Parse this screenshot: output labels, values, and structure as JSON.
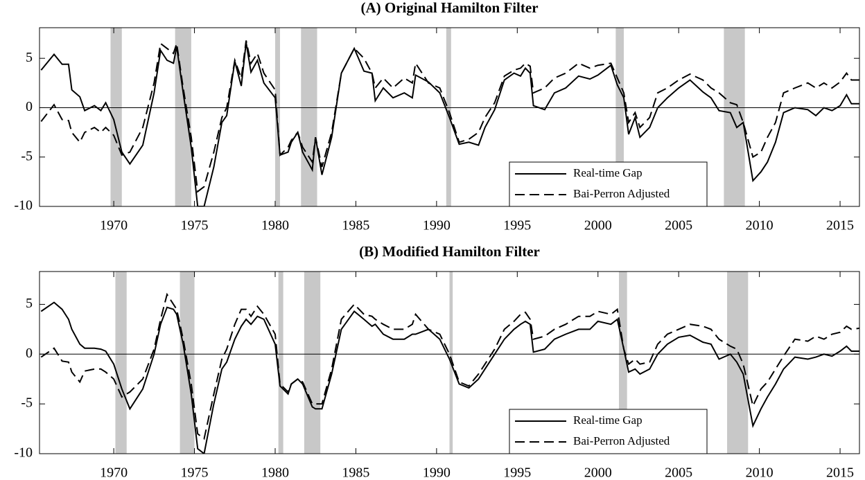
{
  "chart_data": [
    {
      "type": "line",
      "title": "(A) Original Hamilton Filter",
      "x": [
        1965.5,
        1966.3,
        1966.8,
        1967.2,
        1967.4,
        1967.9,
        1968.2,
        1968.8,
        1969.2,
        1969.5,
        1970.0,
        1970.5,
        1971.0,
        1971.8,
        1972.5,
        1972.9,
        1973.3,
        1973.7,
        1973.9,
        1974.3,
        1974.8,
        1975.2,
        1975.6,
        1976.2,
        1976.7,
        1977.0,
        1977.5,
        1977.9,
        1978.2,
        1978.5,
        1978.9,
        1979.3,
        1980.0,
        1980.3,
        1980.8,
        1981.0,
        1981.4,
        1981.7,
        1982.3,
        1982.5,
        1982.9,
        1983.5,
        1984.1,
        1984.9,
        1985.5,
        1986.0,
        1986.2,
        1986.7,
        1987.3,
        1988.0,
        1988.5,
        1988.7,
        1989.5,
        1990.2,
        1990.8,
        1991.4,
        1992.0,
        1992.6,
        1993.0,
        1993.6,
        1994.2,
        1994.8,
        1995.2,
        1995.5,
        1995.8,
        1996.0,
        1996.7,
        1997.3,
        1998.0,
        1998.8,
        1999.5,
        2000.0,
        2000.8,
        2001.2,
        2001.6,
        2001.9,
        2002.3,
        2002.6,
        2003.2,
        2003.7,
        2004.3,
        2005.0,
        2005.7,
        2006.5,
        2007.0,
        2007.5,
        2008.2,
        2008.6,
        2009.0,
        2009.6,
        2010.1,
        2010.5,
        2011.0,
        2011.5,
        2012.2,
        2013.0,
        2013.5,
        2014.0,
        2014.5,
        2015.0,
        2015.4,
        2015.7,
        2016.2
      ],
      "series": [
        {
          "name": "Real-time Gap",
          "color": "#000000",
          "line_style": "solid",
          "values": [
            3.8,
            5.4,
            4.4,
            4.4,
            1.8,
            1.1,
            -0.3,
            0.2,
            -0.3,
            0.5,
            -1.2,
            -4.5,
            -5.7,
            -3.8,
            1.5,
            5.8,
            4.8,
            4.5,
            6.2,
            1.5,
            -4.0,
            -10,
            -10,
            -6.0,
            -1.5,
            -0.8,
            4.7,
            2.2,
            6.6,
            3.6,
            4.8,
            2.5,
            1.0,
            -4.8,
            -4.5,
            -3.5,
            -2.5,
            -4.5,
            -6.3,
            -3.0,
            -6.8,
            -3.0,
            3.5,
            6.0,
            3.7,
            3.5,
            0.7,
            2.0,
            1.0,
            1.5,
            1.0,
            3.3,
            2.6,
            1.5,
            -1.0,
            -3.7,
            -3.5,
            -3.8,
            -2.0,
            -0.2,
            2.8,
            3.5,
            3.2,
            4.0,
            3.5,
            0.2,
            -0.2,
            1.5,
            2.0,
            3.2,
            2.9,
            3.3,
            4.3,
            2.3,
            1.0,
            -2.7,
            -1.0,
            -3.0,
            -2.0,
            0.0,
            1.0,
            2.0,
            2.8,
            1.6,
            1.0,
            -0.3,
            -0.5,
            -2.0,
            -1.5,
            -7.4,
            -6.5,
            -5.5,
            -3.5,
            -0.5,
            0.0,
            -0.2,
            -0.8,
            0.0,
            -0.3,
            0.2,
            1.3,
            0.4,
            0.4
          ]
        },
        {
          "name": "Bai-Perron Adjusted",
          "color": "#000000",
          "line_style": "dashed",
          "values": [
            -1.4,
            0.3,
            -1.2,
            -1.3,
            -2.5,
            -3.5,
            -2.5,
            -2.0,
            -2.5,
            -2.0,
            -2.8,
            -4.8,
            -4.5,
            -2.0,
            2.5,
            6.5,
            6.0,
            5.5,
            6.5,
            2.0,
            -3.0,
            -8.5,
            -8.0,
            -4.5,
            -1.0,
            0.0,
            4.8,
            3.0,
            6.8,
            4.5,
            5.5,
            3.5,
            1.8,
            -4.8,
            -4.0,
            -3.3,
            -2.5,
            -4.0,
            -5.5,
            -3.0,
            -6.0,
            -2.5,
            3.5,
            6.0,
            5.0,
            3.5,
            2.0,
            3.0,
            2.0,
            3.0,
            2.5,
            4.5,
            2.5,
            2.0,
            -0.5,
            -3.5,
            -3.2,
            -2.5,
            -1.0,
            0.5,
            3.2,
            3.8,
            4.0,
            4.5,
            4.2,
            1.5,
            2.0,
            3.0,
            3.5,
            4.5,
            4.0,
            4.3,
            4.5,
            3.0,
            1.5,
            -1.5,
            -0.5,
            -2.0,
            -1.0,
            1.5,
            2.0,
            2.8,
            3.4,
            2.8,
            2.0,
            1.5,
            0.5,
            0.3,
            -1.5,
            -5.0,
            -4.5,
            -3.0,
            -1.5,
            1.5,
            2.0,
            2.5,
            2.0,
            2.5,
            2.0,
            2.6,
            3.5,
            2.8,
            2.8
          ]
        }
      ],
      "xlim": [
        1965.4,
        2016.2
      ],
      "ylim": [
        -10,
        8.1
      ],
      "xticks": [
        1970,
        1975,
        1980,
        1985,
        1990,
        1995,
        2000,
        2005,
        2010,
        2015
      ],
      "yticks": [
        -10,
        -5,
        0,
        5
      ],
      "shaded_regions": [
        [
          1969.8,
          1970.5
        ],
        [
          1973.8,
          1974.8
        ],
        [
          1980.0,
          1980.3
        ],
        [
          1981.6,
          1982.6
        ],
        [
          1990.6,
          1990.9
        ],
        [
          2001.1,
          2001.6
        ],
        [
          2007.8,
          2009.1
        ]
      ],
      "legend": "lower right"
    },
    {
      "type": "line",
      "title": "(B) Modified Hamilton Filter",
      "x": [
        1965.5,
        1966.3,
        1966.8,
        1967.2,
        1967.4,
        1967.9,
        1968.2,
        1968.8,
        1969.2,
        1969.5,
        1970.0,
        1970.5,
        1971.0,
        1971.8,
        1972.5,
        1972.9,
        1973.3,
        1973.7,
        1973.9,
        1974.3,
        1974.8,
        1975.2,
        1975.6,
        1976.2,
        1976.7,
        1977.0,
        1977.5,
        1977.9,
        1978.2,
        1978.5,
        1978.9,
        1979.3,
        1980.0,
        1980.3,
        1980.8,
        1981.0,
        1981.4,
        1981.7,
        1982.3,
        1982.5,
        1982.9,
        1983.5,
        1984.1,
        1984.9,
        1985.5,
        1986.0,
        1986.2,
        1986.7,
        1987.3,
        1988.0,
        1988.5,
        1988.7,
        1989.5,
        1990.2,
        1990.8,
        1991.4,
        1992.0,
        1992.6,
        1993.0,
        1993.6,
        1994.2,
        1994.8,
        1995.2,
        1995.5,
        1995.8,
        1996.0,
        1996.7,
        1997.3,
        1998.0,
        1998.8,
        1999.5,
        2000.0,
        2000.8,
        2001.2,
        2001.6,
        2001.9,
        2002.3,
        2002.6,
        2003.2,
        2003.7,
        2004.3,
        2005.0,
        2005.7,
        2006.5,
        2007.0,
        2007.5,
        2008.2,
        2008.6,
        2009.0,
        2009.6,
        2010.1,
        2010.5,
        2011.0,
        2011.5,
        2012.2,
        2013.0,
        2013.5,
        2014.0,
        2014.5,
        2015.0,
        2015.4,
        2015.7,
        2016.2
      ],
      "series": [
        {
          "name": "Real-time Gap",
          "color": "#000000",
          "line_style": "solid",
          "values": [
            4.3,
            5.2,
            4.5,
            3.5,
            2.5,
            1.0,
            0.6,
            0.6,
            0.5,
            0.3,
            -1.0,
            -3.5,
            -5.5,
            -3.5,
            0.0,
            3.0,
            4.7,
            4.5,
            4.0,
            1.0,
            -4.0,
            -9.5,
            -10,
            -5.0,
            -1.5,
            -0.8,
            1.5,
            2.8,
            3.5,
            3.0,
            3.8,
            3.5,
            1.0,
            -3.2,
            -4.0,
            -3.0,
            -2.5,
            -3.0,
            -5.3,
            -5.5,
            -5.5,
            -2.0,
            2.5,
            4.3,
            3.5,
            2.8,
            3.0,
            2.0,
            1.5,
            1.5,
            2.0,
            2.0,
            2.5,
            1.5,
            -0.5,
            -3.0,
            -3.4,
            -2.5,
            -1.5,
            0.0,
            1.5,
            2.5,
            3.0,
            3.3,
            3.0,
            0.2,
            0.5,
            1.5,
            2.0,
            2.5,
            2.5,
            3.3,
            3.0,
            3.5,
            0.5,
            -1.8,
            -1.5,
            -2.0,
            -1.5,
            0.0,
            1.0,
            1.7,
            1.9,
            1.2,
            1.0,
            -0.5,
            0.0,
            -0.8,
            -2.0,
            -7.2,
            -5.5,
            -4.3,
            -3.0,
            -1.5,
            -0.3,
            -0.5,
            -0.3,
            0.0,
            -0.2,
            0.3,
            0.8,
            0.3,
            0.3
          ]
        },
        {
          "name": "Bai-Perron Adjusted",
          "color": "#000000",
          "line_style": "dashed",
          "values": [
            -0.3,
            0.6,
            -0.7,
            -0.8,
            -1.8,
            -2.8,
            -1.7,
            -1.5,
            -1.5,
            -1.8,
            -2.5,
            -4.3,
            -3.8,
            -2.5,
            0.5,
            3.5,
            6.0,
            5.0,
            4.5,
            1.5,
            -3.0,
            -8.0,
            -8.5,
            -4.0,
            -0.5,
            0.5,
            3.0,
            4.5,
            4.5,
            3.8,
            4.8,
            4.0,
            2.0,
            -3.0,
            -3.8,
            -3.0,
            -2.5,
            -2.8,
            -5.0,
            -5.0,
            -5.0,
            -1.5,
            3.5,
            5.0,
            4.0,
            3.8,
            3.5,
            3.0,
            2.5,
            2.5,
            3.0,
            4.0,
            2.5,
            2.0,
            0.0,
            -2.8,
            -3.2,
            -2.0,
            -1.0,
            0.5,
            2.5,
            3.3,
            4.0,
            4.2,
            3.5,
            1.5,
            1.8,
            2.5,
            3.0,
            3.8,
            3.8,
            4.3,
            4.0,
            4.5,
            0.5,
            -1.0,
            -0.5,
            -1.0,
            -0.8,
            1.0,
            2.0,
            2.5,
            3.0,
            2.8,
            2.5,
            1.5,
            0.8,
            0.5,
            -1.0,
            -5.2,
            -3.5,
            -2.8,
            -1.5,
            -0.2,
            1.5,
            1.3,
            1.8,
            1.5,
            2.0,
            2.2,
            2.8,
            2.5,
            2.6
          ]
        }
      ],
      "xlim": [
        1965.4,
        2016.2
      ],
      "ylim": [
        -10,
        8.3
      ],
      "xticks": [
        1970,
        1975,
        1980,
        1985,
        1990,
        1995,
        2000,
        2005,
        2010,
        2015
      ],
      "yticks": [
        -10,
        -5,
        0,
        5
      ],
      "shaded_regions": [
        [
          1970.1,
          1970.8
        ],
        [
          1974.1,
          1975.0
        ],
        [
          1980.2,
          1980.5
        ],
        [
          1981.8,
          1982.8
        ],
        [
          1990.8,
          1991.0
        ],
        [
          2001.3,
          2001.8
        ],
        [
          2008.0,
          2009.3
        ]
      ],
      "legend": "lower right"
    }
  ]
}
